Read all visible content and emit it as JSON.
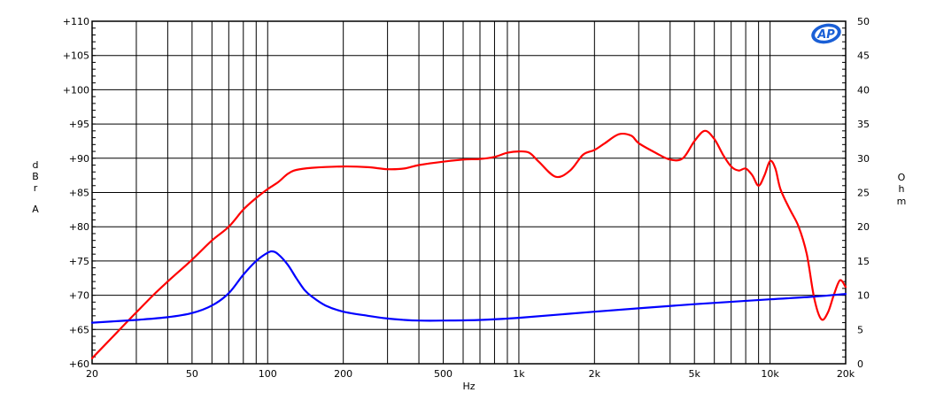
{
  "chart_data": {
    "type": "line",
    "title": "",
    "xlabel": "Hz",
    "ylabel": "dBrA",
    "y2label": "Ohm",
    "x_scale": "log",
    "xlim": [
      20,
      20000
    ],
    "ylim": [
      60,
      110
    ],
    "y2lim": [
      0,
      50
    ],
    "grid": true,
    "logo_text": "AP",
    "x_ticks": [
      {
        "value": 20,
        "label": "20"
      },
      {
        "value": 50,
        "label": "50"
      },
      {
        "value": 100,
        "label": "100"
      },
      {
        "value": 200,
        "label": "200"
      },
      {
        "value": 500,
        "label": "500"
      },
      {
        "value": 1000,
        "label": "1k"
      },
      {
        "value": 2000,
        "label": "2k"
      },
      {
        "value": 5000,
        "label": "5k"
      },
      {
        "value": 10000,
        "label": "10k"
      },
      {
        "value": 20000,
        "label": "20k"
      }
    ],
    "y_ticks": [
      {
        "value": 60,
        "label": "+60"
      },
      {
        "value": 65,
        "label": "+65"
      },
      {
        "value": 70,
        "label": "+70"
      },
      {
        "value": 75,
        "label": "+75"
      },
      {
        "value": 80,
        "label": "+80"
      },
      {
        "value": 85,
        "label": "+85"
      },
      {
        "value": 90,
        "label": "+90"
      },
      {
        "value": 95,
        "label": "+95"
      },
      {
        "value": 100,
        "label": "+100"
      },
      {
        "value": 105,
        "label": "+105"
      },
      {
        "value": 110,
        "label": "+110"
      }
    ],
    "y2_ticks": [
      {
        "value": 0,
        "label": "0"
      },
      {
        "value": 5,
        "label": "5"
      },
      {
        "value": 10,
        "label": "10"
      },
      {
        "value": 15,
        "label": "15"
      },
      {
        "value": 20,
        "label": "20"
      },
      {
        "value": 25,
        "label": "25"
      },
      {
        "value": 30,
        "label": "30"
      },
      {
        "value": 35,
        "label": "35"
      },
      {
        "value": 40,
        "label": "40"
      },
      {
        "value": 45,
        "label": "45"
      },
      {
        "value": 50,
        "label": "50"
      }
    ],
    "series": [
      {
        "color": "#ff0000",
        "axis": "left",
        "x": [
          20,
          25,
          30,
          35,
          40,
          50,
          60,
          70,
          80,
          90,
          100,
          110,
          120,
          130,
          150,
          200,
          250,
          300,
          350,
          400,
          500,
          600,
          700,
          800,
          900,
          1000,
          1100,
          1200,
          1400,
          1600,
          1800,
          2000,
          2200,
          2500,
          2800,
          3000,
          3500,
          4000,
          4500,
          5000,
          5500,
          6000,
          6500,
          7000,
          7500,
          8000,
          8500,
          9000,
          9500,
          10000,
          10500,
          11000,
          12000,
          13000,
          14000,
          15000,
          16000,
          17000,
          18000,
          19000,
          20000
        ],
        "y": [
          60.8,
          64.5,
          67.5,
          70.0,
          72.0,
          75.2,
          78.0,
          80.0,
          82.5,
          84.2,
          85.5,
          86.5,
          87.7,
          88.3,
          88.6,
          88.8,
          88.7,
          88.4,
          88.5,
          89.0,
          89.5,
          89.8,
          89.9,
          90.2,
          90.8,
          91.0,
          90.8,
          89.5,
          87.3,
          88.2,
          90.5,
          91.2,
          92.2,
          93.5,
          93.3,
          92.2,
          90.8,
          89.8,
          90.0,
          92.5,
          94.0,
          92.8,
          90.5,
          88.8,
          88.2,
          88.5,
          87.5,
          86.0,
          87.5,
          89.6,
          88.5,
          85.5,
          82.5,
          80.0,
          76.0,
          69.5,
          66.5,
          67.5,
          70.2,
          72.2,
          71.2
        ]
      },
      {
        "color": "#0000ff",
        "axis": "right",
        "x": [
          20,
          30,
          40,
          50,
          60,
          70,
          80,
          90,
          100,
          105,
          110,
          120,
          130,
          140,
          150,
          170,
          200,
          250,
          300,
          350,
          400,
          500,
          700,
          1000,
          2000,
          5000,
          10000,
          15000,
          20000
        ],
        "y": [
          6.0,
          6.4,
          6.8,
          7.4,
          8.5,
          10.3,
          13.0,
          15.0,
          16.2,
          16.4,
          16.0,
          14.5,
          12.5,
          10.8,
          9.8,
          8.5,
          7.6,
          7.0,
          6.6,
          6.4,
          6.3,
          6.3,
          6.4,
          6.7,
          7.6,
          8.7,
          9.4,
          9.8,
          10.2
        ]
      }
    ]
  }
}
